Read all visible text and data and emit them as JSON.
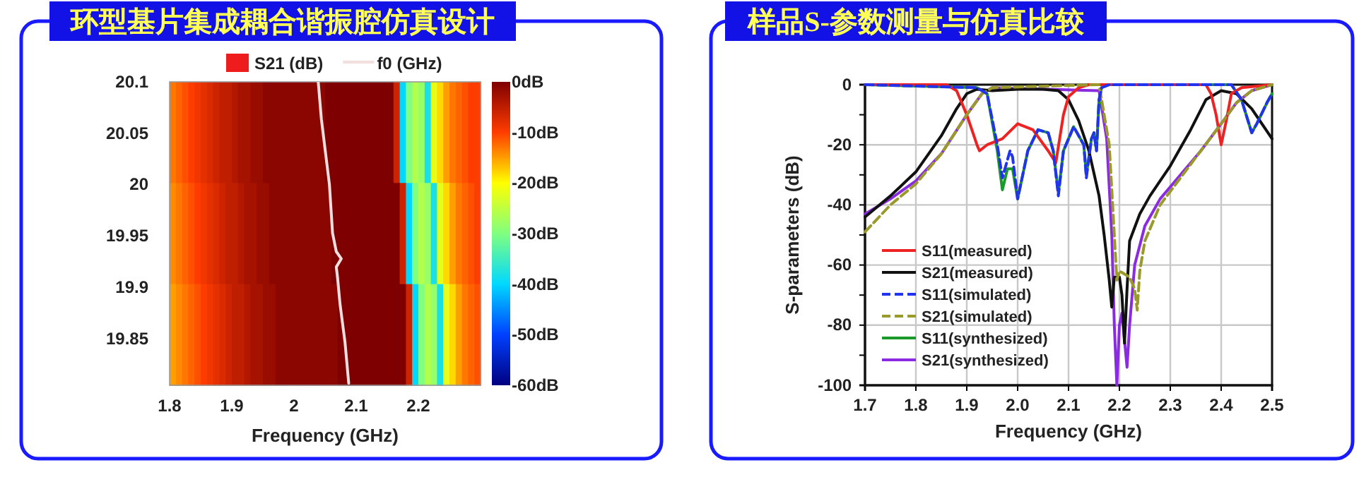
{
  "chart_data": [
    {
      "type": "heatmap",
      "title": "环型基片集成耦合谐振腔仿真设计",
      "xlabel": "Frequency (GHz)",
      "legend": "top",
      "xlim": [
        1.8,
        2.3
      ],
      "xticks": [
        1.8,
        1.9,
        2,
        2.1,
        2.2
      ],
      "ylim": [
        19.805,
        20.1
      ],
      "yticks": [
        20.1,
        20.05,
        20,
        19.95,
        19.9,
        19.85
      ],
      "clim": [
        -60,
        0
      ],
      "cticks": [
        {
          "value": 0,
          "label": "0dB"
        },
        {
          "value": -10,
          "label": "-10dB"
        },
        {
          "value": -20,
          "label": "-20dB"
        },
        {
          "value": -30,
          "label": "-30dB"
        },
        {
          "value": -40,
          "label": "-40dB"
        },
        {
          "value": -50,
          "label": "-50dB"
        },
        {
          "value": -60,
          "label": "-60dB"
        }
      ],
      "cells": [
        [
          -13,
          -12,
          -11,
          -10,
          -9,
          -8,
          -7,
          -6,
          -5,
          -5,
          -4,
          -3,
          -3,
          -2,
          -2,
          -1,
          -1,
          -1,
          -1,
          -1,
          -1,
          -1,
          -1,
          -1,
          -1,
          0,
          0,
          0,
          0,
          0,
          0,
          0,
          0,
          0,
          0,
          0,
          -6,
          -40,
          -30,
          -26,
          -28,
          -38,
          -22,
          -18,
          -15,
          -13,
          -12,
          -11,
          -10,
          -10
        ],
        [
          -14,
          -13,
          -12,
          -11,
          -10,
          -9,
          -8,
          -7,
          -6,
          -5,
          -5,
          -4,
          -3,
          -3,
          -2,
          -2,
          -1,
          -1,
          -1,
          -1,
          -1,
          -1,
          -1,
          -1,
          -1,
          -1,
          0,
          0,
          0,
          0,
          0,
          0,
          0,
          0,
          0,
          0,
          0,
          -6,
          -40,
          -30,
          -26,
          -28,
          -38,
          -22,
          -18,
          -15,
          -13,
          -12,
          -11,
          -10
        ],
        [
          -15,
          -14,
          -13,
          -12,
          -11,
          -10,
          -9,
          -8,
          -7,
          -6,
          -5,
          -5,
          -4,
          -3,
          -3,
          -2,
          -2,
          -1,
          -1,
          -1,
          -1,
          -1,
          -1,
          -1,
          -1,
          -1,
          -1,
          0,
          0,
          0,
          0,
          0,
          0,
          0,
          0,
          0,
          0,
          0,
          -6,
          -40,
          -30,
          -26,
          -28,
          -38,
          -22,
          -18,
          -15,
          -13,
          -12,
          -11
        ]
      ],
      "series": [
        {
          "type": "heatmap",
          "name": "S21 (dB)",
          "color": "#ee1c1c"
        },
        {
          "type": "line",
          "name": "f0 (GHz)",
          "color": "#f2dede",
          "x": [
            2.039,
            2.044,
            2.057,
            2.062,
            2.068,
            2.076,
            2.068,
            2.07,
            2.074,
            2.082,
            2.088
          ],
          "values": [
            20.1,
            20.064,
            20.0,
            19.953,
            19.935,
            19.928,
            19.92,
            19.91,
            19.884,
            19.847,
            19.807
          ]
        }
      ]
    },
    {
      "type": "line",
      "title": "样品S-参数测量与仿真比较",
      "xlabel": "Frequency (GHz)",
      "ylabel": "S-parameters (dB)",
      "grid": true,
      "legend": "bottom left",
      "xlim": [
        1.7,
        2.5
      ],
      "xticks": [
        1.7,
        1.8,
        1.9,
        {
          "value": 2,
          "label": "2.0"
        },
        2.1,
        2.2,
        2.3,
        2.4,
        2.5
      ],
      "ylim": [
        -100,
        0
      ],
      "yticks": [
        0,
        {
          "value": -10,
          "label": null
        },
        -20,
        {
          "value": -30,
          "label": null
        },
        -40,
        {
          "value": -50,
          "label": null
        },
        -60,
        {
          "value": -70,
          "label": null
        },
        -80,
        {
          "value": -90,
          "label": null
        },
        -100
      ],
      "series": [
        {
          "name": "S11(measured)",
          "color": "#ee2222",
          "line_style": "solid",
          "x": [
            1.7,
            1.86,
            1.88,
            1.9,
            1.92,
            1.925,
            1.94,
            1.97,
            2.0,
            2.03,
            2.06,
            2.075,
            2.09,
            2.1,
            2.12,
            2.14,
            2.37,
            2.38,
            2.39,
            2.4,
            2.41,
            2.42,
            2.44,
            2.5
          ],
          "values": [
            0,
            0,
            -2,
            -10,
            -20,
            -22,
            -20,
            -18,
            -13,
            -15,
            -22,
            -26,
            -10,
            -4,
            -1,
            0,
            0,
            -3,
            -10,
            -20,
            -12,
            -3,
            -1,
            0
          ]
        },
        {
          "name": "S21(measured)",
          "color": "#111111",
          "line_style": "solid",
          "x": [
            1.7,
            1.75,
            1.8,
            1.85,
            1.88,
            1.9,
            1.92,
            1.95,
            2.0,
            2.05,
            2.08,
            2.1,
            2.12,
            2.14,
            2.16,
            2.17,
            2.18,
            2.185,
            2.19,
            2.2,
            2.205,
            2.21,
            2.215,
            2.22,
            2.24,
            2.26,
            2.3,
            2.34,
            2.37,
            2.4,
            2.43,
            2.46,
            2.5
          ],
          "values": [
            -44,
            -37,
            -29,
            -17,
            -8,
            -3,
            -1.5,
            -2,
            -1.5,
            -1.5,
            -2,
            -5,
            -12,
            -22,
            -37,
            -50,
            -65,
            -74,
            -64,
            -64,
            -70,
            -86,
            -68,
            -52,
            -43,
            -37,
            -27,
            -15,
            -5,
            -2,
            -3,
            -8,
            -18
          ]
        },
        {
          "name": "S11(simulated)",
          "color": "#2233ee",
          "line_style": "dashed",
          "x": [
            1.7,
            1.92,
            1.94,
            1.96,
            1.97,
            1.985,
            1.99,
            2.0,
            2.02,
            2.04,
            2.06,
            2.07,
            2.08,
            2.09,
            2.11,
            2.13,
            2.135,
            2.145,
            2.15,
            2.155,
            2.16,
            2.165,
            2.18,
            2.42,
            2.44,
            2.46,
            2.47,
            2.49,
            2.5
          ],
          "values": [
            0,
            -1,
            -3,
            -20,
            -31,
            -22,
            -24,
            -38,
            -22,
            -15,
            -16,
            -22,
            -37,
            -22,
            -14,
            -20,
            -31,
            -18,
            -16,
            -22,
            -5,
            -1,
            0,
            0,
            -5,
            -16,
            -13,
            -6,
            -3
          ]
        },
        {
          "name": "S21(simulated)",
          "color": "#9a9a2a",
          "line_style": "dashed",
          "x": [
            1.7,
            1.75,
            1.8,
            1.85,
            1.9,
            1.93,
            1.95,
            2.16,
            2.17,
            2.18,
            2.19,
            2.195,
            2.2,
            2.22,
            2.23,
            2.235,
            2.24,
            2.25,
            2.28,
            2.32,
            2.36,
            2.4,
            2.43,
            2.46,
            2.5
          ],
          "values": [
            -49,
            -40,
            -33,
            -23,
            -10,
            -3,
            -1,
            0,
            -10,
            -20,
            -50,
            -65,
            -62,
            -64,
            -68,
            -75,
            -62,
            -52,
            -40,
            -31,
            -22,
            -13,
            -6,
            -2,
            0
          ]
        },
        {
          "name": "S11(synthesized)",
          "color": "#1a9a2a",
          "line_style": "solid",
          "x": [
            1.7,
            1.92,
            1.94,
            1.96,
            1.97,
            1.98,
            1.99,
            2.0,
            2.02,
            2.04,
            2.06,
            2.07,
            2.08,
            2.09,
            2.11,
            2.13,
            2.135,
            2.145,
            2.15,
            2.155,
            2.16,
            2.165,
            2.18,
            2.42,
            2.44,
            2.46,
            2.47,
            2.49,
            2.5
          ],
          "values": [
            0,
            -1,
            -3,
            -22,
            -35,
            -28,
            -28,
            -38,
            -22,
            -15,
            -16,
            -22,
            -36,
            -22,
            -14,
            -20,
            -30,
            -18,
            -16,
            -22,
            -5,
            -1,
            0,
            0,
            -5,
            -16,
            -13,
            -6,
            -3
          ]
        },
        {
          "name": "S21(synthesized)",
          "color": "#8a2be2",
          "line_style": "solid",
          "x": [
            1.7,
            1.75,
            1.8,
            1.85,
            1.9,
            1.93,
            1.95,
            2.16,
            2.175,
            2.185,
            2.19,
            2.195,
            2.2,
            2.205,
            2.21,
            2.215,
            2.22,
            2.23,
            2.25,
            2.28,
            2.32,
            2.36,
            2.4,
            2.43,
            2.46,
            2.5
          ],
          "values": [
            -43,
            -38,
            -32,
            -23,
            -10,
            -3,
            -1,
            -2,
            -18,
            -50,
            -80,
            -100,
            -80,
            -76,
            -85,
            -94,
            -80,
            -60,
            -47,
            -38,
            -30,
            -22,
            -13,
            -6,
            -2,
            0
          ]
        }
      ]
    }
  ]
}
